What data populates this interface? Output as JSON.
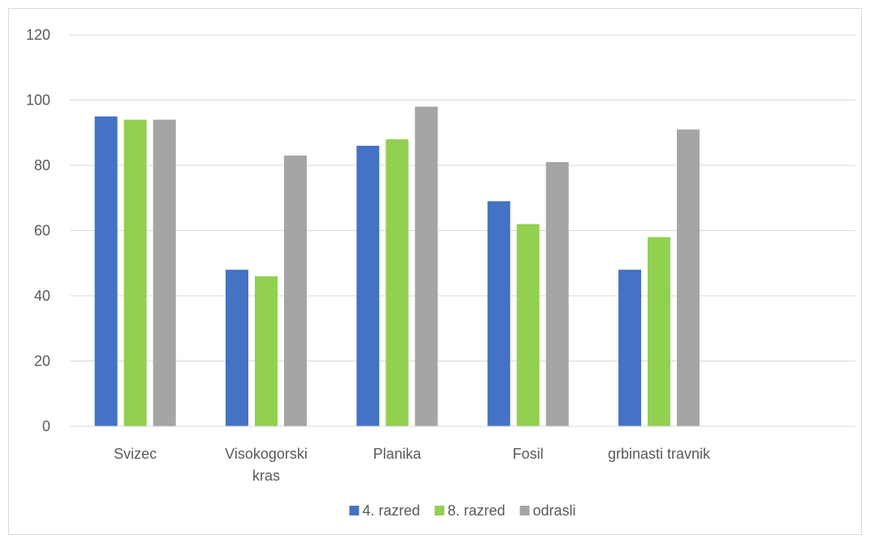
{
  "chart_data": {
    "type": "bar",
    "title": "",
    "xlabel": "",
    "ylabel": "",
    "categories": [
      "Svizec",
      "Visokogorski kras",
      "Planika",
      "Fosil",
      "grbinasti travnik",
      ""
    ],
    "category_lines": [
      [
        "Svizec"
      ],
      [
        "Visokogorski",
        "kras"
      ],
      [
        "Planika"
      ],
      [
        "Fosil"
      ],
      [
        "grbinasti travnik"
      ],
      []
    ],
    "series": [
      {
        "name": "4. razred",
        "color": "#4472c4",
        "values": [
          95,
          48,
          86,
          69,
          48,
          null
        ]
      },
      {
        "name": "8. razred",
        "color": "#92d050",
        "values": [
          94,
          46,
          88,
          62,
          58,
          null
        ]
      },
      {
        "name": "odrasli",
        "color": "#a5a5a5",
        "values": [
          94,
          83,
          98,
          81,
          91,
          null
        ]
      }
    ],
    "ylim": [
      0,
      120
    ],
    "yticks": [
      0,
      20,
      40,
      60,
      80,
      100,
      120
    ],
    "grid": true,
    "legend_position": "bottom"
  },
  "colors": {
    "gridline": "#d9d9d9",
    "axis": "#d9d9d9",
    "text": "#595959"
  }
}
